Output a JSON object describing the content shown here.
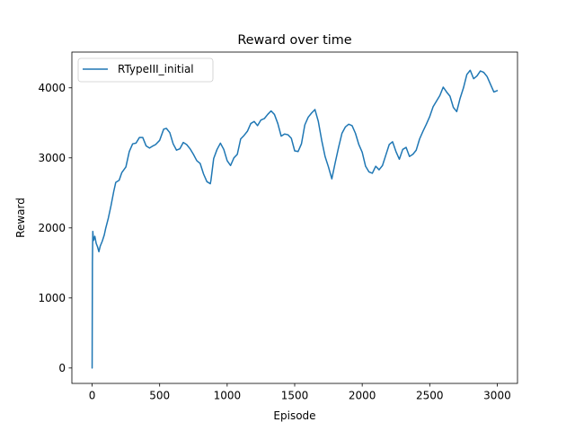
{
  "chart_data": {
    "type": "line",
    "title": "Reward over time",
    "xlabel": "Episode",
    "ylabel": "Reward",
    "xlim": [
      -150,
      3150
    ],
    "ylim": [
      -220,
      4510
    ],
    "xticks": [
      0,
      500,
      1000,
      1500,
      2000,
      2500,
      3000
    ],
    "yticks": [
      0,
      1000,
      2000,
      3000,
      4000
    ],
    "grid": false,
    "legend_position": "top-left",
    "colors": {
      "series": "#1f77b4",
      "axes": "#000000",
      "background": "#ffffff"
    },
    "series": [
      {
        "name": "RTypeIII_initial",
        "x": [
          0,
          2,
          5,
          10,
          20,
          30,
          40,
          50,
          60,
          75,
          90,
          100,
          120,
          140,
          160,
          175,
          200,
          220,
          250,
          275,
          300,
          325,
          350,
          375,
          400,
          425,
          450,
          470,
          500,
          530,
          550,
          575,
          600,
          625,
          650,
          675,
          700,
          725,
          750,
          775,
          800,
          825,
          850,
          875,
          880,
          900,
          925,
          950,
          975,
          1000,
          1025,
          1050,
          1075,
          1100,
          1125,
          1150,
          1175,
          1200,
          1225,
          1250,
          1275,
          1300,
          1325,
          1350,
          1375,
          1400,
          1425,
          1450,
          1475,
          1500,
          1525,
          1550,
          1575,
          1600,
          1625,
          1650,
          1675,
          1700,
          1725,
          1750,
          1775,
          1800,
          1825,
          1850,
          1875,
          1900,
          1925,
          1950,
          1975,
          2000,
          2025,
          2050,
          2075,
          2100,
          2125,
          2150,
          2175,
          2200,
          2225,
          2250,
          2275,
          2300,
          2325,
          2350,
          2375,
          2400,
          2425,
          2450,
          2475,
          2500,
          2525,
          2550,
          2575,
          2600,
          2625,
          2650,
          2675,
          2700,
          2725,
          2750,
          2775,
          2800,
          2825,
          2850,
          2875,
          2900,
          2925,
          2950,
          2975,
          3000
        ],
        "y": [
          0,
          1500,
          1950,
          1820,
          1880,
          1780,
          1730,
          1660,
          1740,
          1810,
          1900,
          1990,
          2140,
          2320,
          2520,
          2650,
          2680,
          2790,
          2870,
          3090,
          3200,
          3210,
          3290,
          3290,
          3170,
          3140,
          3170,
          3190,
          3250,
          3410,
          3420,
          3360,
          3200,
          3110,
          3130,
          3220,
          3190,
          3130,
          3050,
          2960,
          2920,
          2770,
          2660,
          2630,
          2680,
          2990,
          3120,
          3210,
          3120,
          2960,
          2890,
          3000,
          3050,
          3270,
          3320,
          3380,
          3490,
          3520,
          3460,
          3540,
          3560,
          3620,
          3670,
          3620,
          3490,
          3310,
          3340,
          3330,
          3280,
          3100,
          3090,
          3200,
          3470,
          3580,
          3640,
          3690,
          3520,
          3250,
          3020,
          2870,
          2700,
          2930,
          3150,
          3350,
          3440,
          3480,
          3460,
          3350,
          3190,
          3080,
          2880,
          2800,
          2780,
          2880,
          2830,
          2890,
          3040,
          3190,
          3230,
          3090,
          2980,
          3120,
          3150,
          3020,
          3050,
          3110,
          3270,
          3380,
          3480,
          3590,
          3730,
          3810,
          3890,
          4010,
          3940,
          3880,
          3720,
          3660,
          3850,
          4000,
          4190,
          4250,
          4130,
          4170,
          4240,
          4220,
          4160,
          4050,
          3940,
          3960
        ]
      }
    ]
  }
}
